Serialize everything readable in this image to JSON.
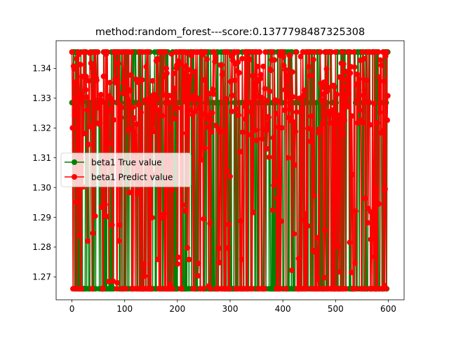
{
  "chart_data": {
    "type": "line",
    "title": "method:random_forest---score:0.1377798487325308",
    "xlabel": "",
    "ylabel": "",
    "xlim": [
      -30,
      630
    ],
    "ylim": [
      1.2623,
      1.3493
    ],
    "x_ticks": [
      0,
      100,
      200,
      300,
      400,
      500,
      600
    ],
    "x_tick_labels": [
      "0",
      "100",
      "200",
      "300",
      "400",
      "500",
      "600"
    ],
    "y_ticks": [
      1.27,
      1.28,
      1.29,
      1.3,
      1.31,
      1.32,
      1.33,
      1.34
    ],
    "y_tick_labels": [
      "1.27",
      "1.28",
      "1.29",
      "1.30",
      "1.31",
      "1.32",
      "1.33",
      "1.34"
    ],
    "grid": false,
    "legend_position": "center-left",
    "n_points": 600,
    "levels": [
      1.266,
      1.3285,
      1.3455
    ],
    "series": [
      {
        "name": "beta1 True value",
        "color": "#008000",
        "marker": "circle",
        "pattern": "random switching between levels 1.266, 1.3285 and 1.3455 for x = 0 to 599"
      },
      {
        "name": "beta1 Predict value",
        "color": "#ff0000",
        "marker": "circle",
        "pattern": "noisy predictions spanning roughly 1.266 to 1.3455 for x = 0 to 599"
      }
    ]
  }
}
